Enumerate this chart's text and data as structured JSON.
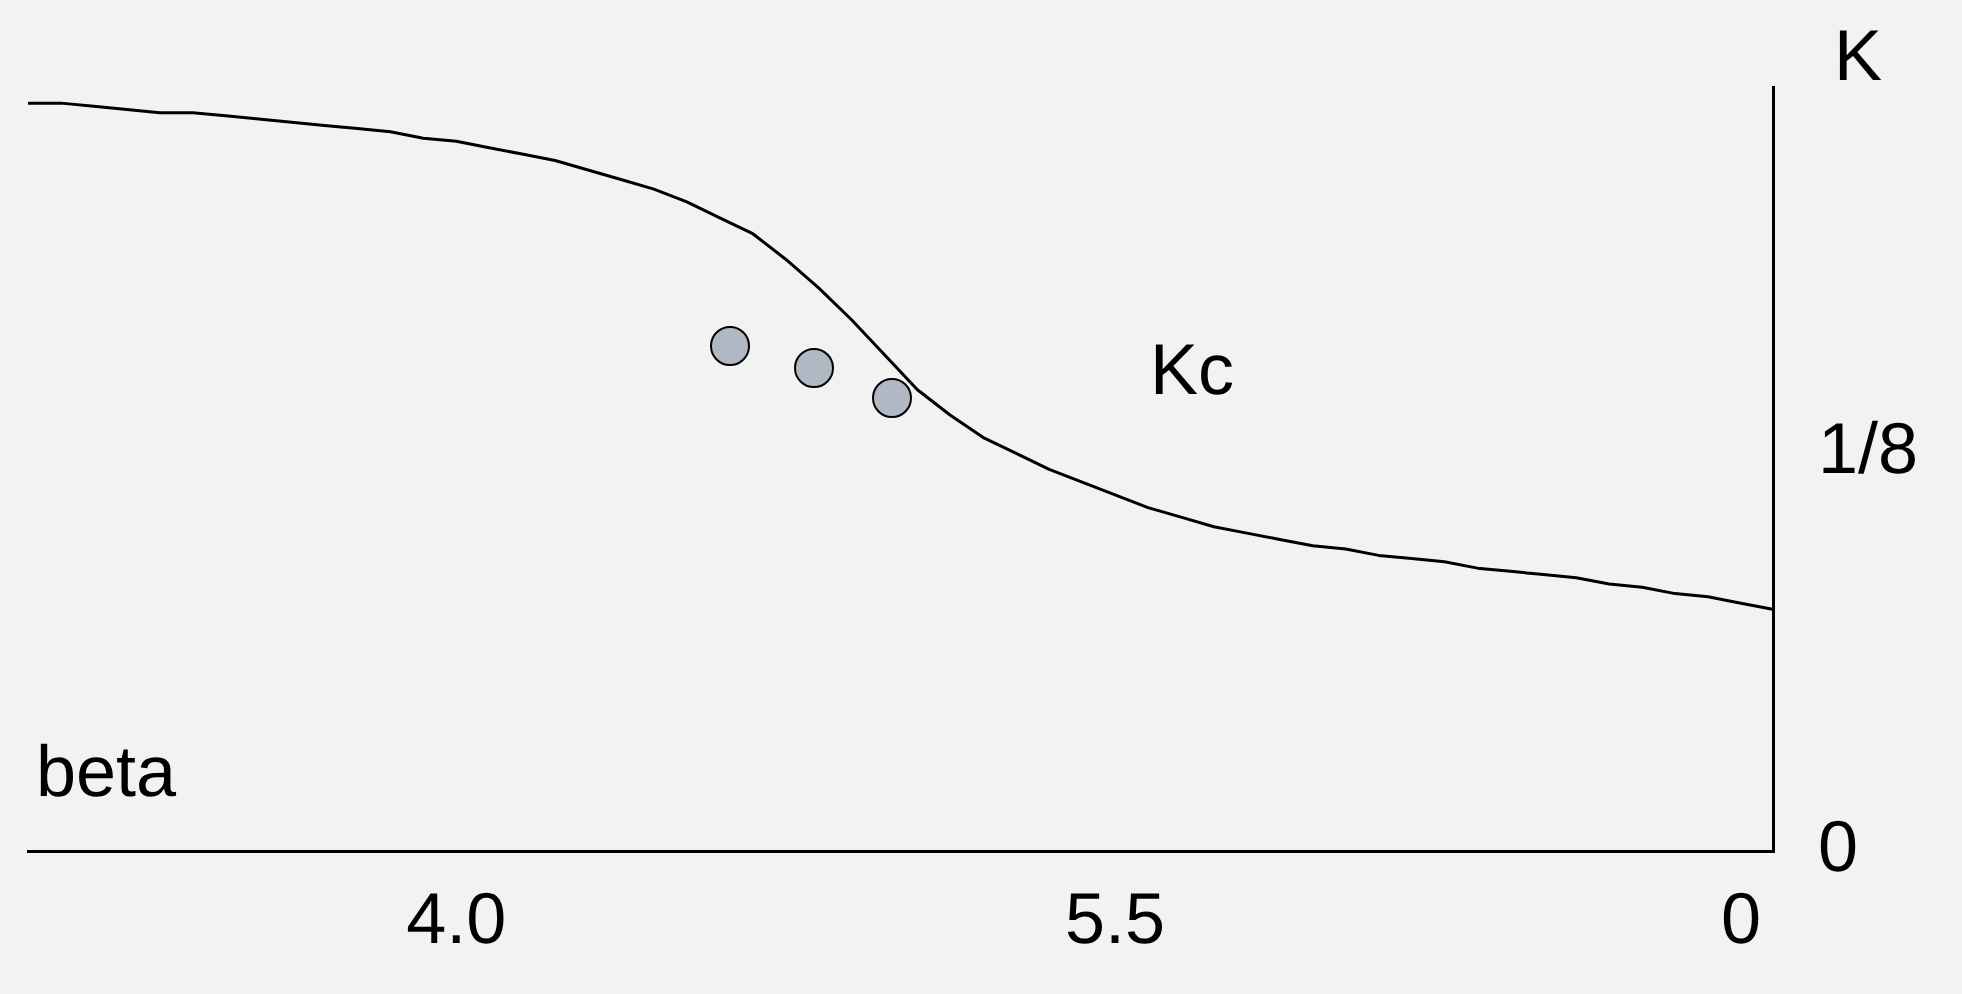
{
  "chart_data": {
    "type": "line",
    "xlabel": "beta",
    "ylabel": "K",
    "annotations": [
      "Kc"
    ],
    "categories": [
      null,
      null,
      null,
      null,
      null,
      null,
      null,
      null,
      null,
      null,
      null,
      null,
      null,
      "4.0",
      null,
      null,
      null,
      null,
      null,
      null,
      null,
      null,
      null,
      null,
      null,
      null,
      null,
      null,
      null,
      null,
      null,
      null,
      null,
      "5.5",
      null,
      null,
      null,
      null,
      null,
      null,
      null,
      null,
      null,
      null,
      null,
      null,
      null,
      null,
      null,
      null,
      null,
      null,
      "0",
      null
    ],
    "series": [
      {
        "color": "#000000",
        "values": [
          0.235,
          0.235,
          0.234,
          0.233,
          0.232,
          0.232,
          0.231,
          0.23,
          0.229,
          0.228,
          0.227,
          0.226,
          0.224,
          0.223,
          0.221,
          0.219,
          0.217,
          0.214,
          0.211,
          0.208,
          0.204,
          0.199,
          0.194,
          0.186,
          0.177,
          0.167,
          0.156,
          0.145,
          0.137,
          0.13,
          0.125,
          0.12,
          0.116,
          0.112,
          0.108,
          0.105,
          0.102,
          0.1,
          0.098,
          0.096,
          0.095,
          0.093,
          0.092,
          0.091,
          0.089,
          0.088,
          0.087,
          0.086,
          0.084,
          0.083,
          0.081,
          0.08,
          0.078,
          0.076
        ]
      }
    ],
    "ylim": [
      0,
      0.24
    ],
    "yticks": [
      0,
      {
        "value": 0.125,
        "label": "1/8"
      }
    ],
    "grid": false,
    "legend": false,
    "marker": "none",
    "line_style": "solid"
  }
}
